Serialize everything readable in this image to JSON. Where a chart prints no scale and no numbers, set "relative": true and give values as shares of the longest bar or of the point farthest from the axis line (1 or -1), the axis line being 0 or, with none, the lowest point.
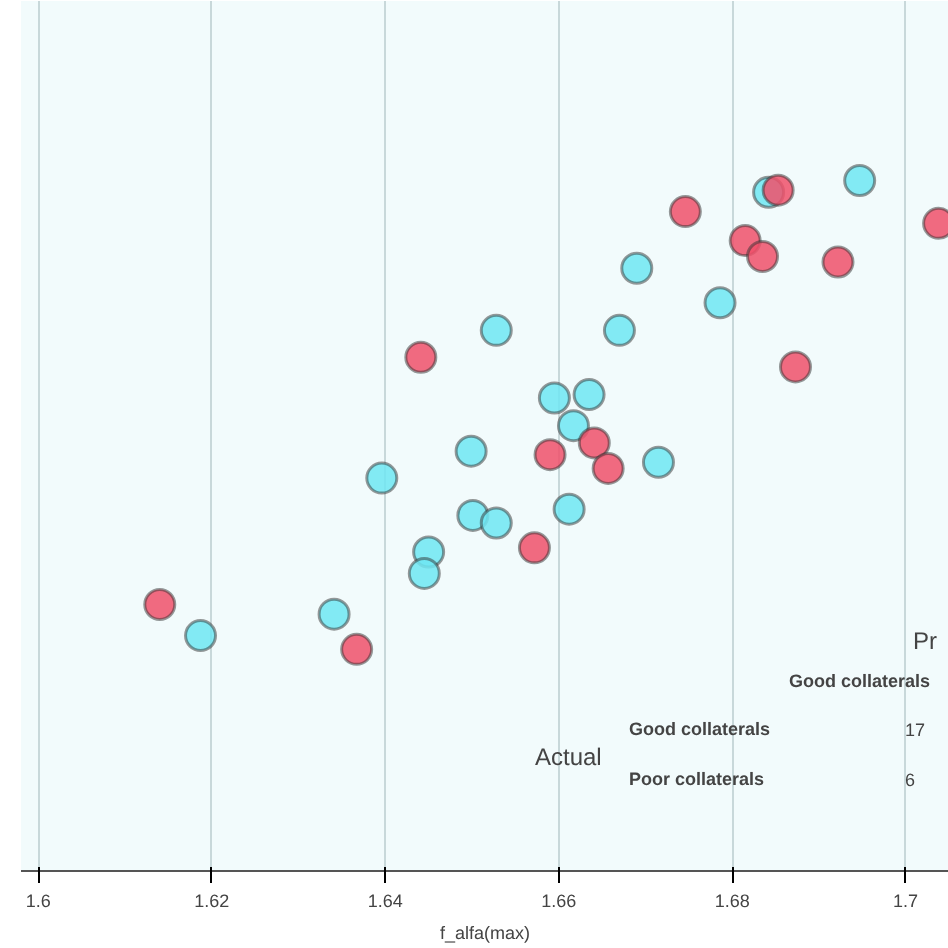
{
  "chart_data": {
    "type": "scatter",
    "xlabel": "f_alfa(max)",
    "relative": true,
    "marker": "circle",
    "grid": "x",
    "xlim": [
      1.598,
      1.705
    ],
    "xticks": [
      {
        "value": 1.6,
        "label": "1.6"
      },
      1.62,
      1.64,
      1.66,
      1.68,
      {
        "value": 1.7,
        "label": "1.7"
      }
    ],
    "annotations": [
      "Pr",
      "Good collaterals",
      "Actual",
      "Good collaterals",
      "17",
      "Poor collaterals",
      "6"
    ],
    "series": [
      {
        "color": "#f0506a",
        "x": [
          1.6746,
          1.6853,
          1.6815,
          1.6835,
          1.6922,
          1.7038,
          1.6441,
          1.6873,
          1.659,
          1.6641,
          1.6657,
          1.6572,
          1.614,
          1.6367
        ],
        "values": [
          0.955,
          0.986,
          0.913,
          0.89,
          0.882,
          0.938,
          0.744,
          0.73,
          0.603,
          0.62,
          0.583,
          0.468,
          0.386,
          0.321
        ]
      },
      {
        "color": "#6ee6f2",
        "x": [
          1.6947,
          1.6842,
          1.669,
          1.6786,
          1.6528,
          1.667,
          1.6595,
          1.6635,
          1.6617,
          1.6499,
          1.6715,
          1.6396,
          1.6612,
          1.6501,
          1.6528,
          1.645,
          1.6445,
          1.6341,
          1.6187
        ],
        "values": [
          1.0,
          0.983,
          0.873,
          0.823,
          0.783,
          0.783,
          0.685,
          0.69,
          0.645,
          0.608,
          0.592,
          0.569,
          0.524,
          0.515,
          0.504,
          0.462,
          0.431,
          0.372,
          0.341
        ]
      }
    ]
  }
}
